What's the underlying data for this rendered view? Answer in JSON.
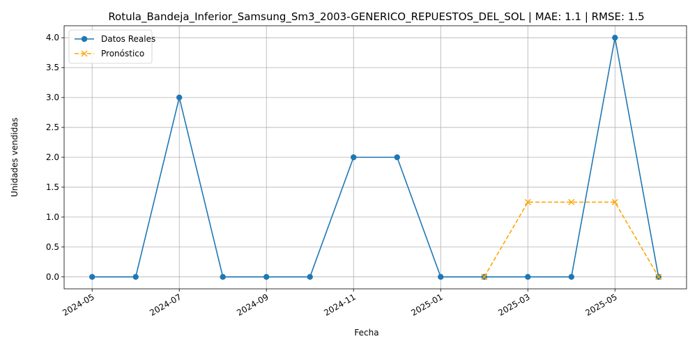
{
  "chart_data": {
    "type": "line",
    "title": "Rotula_Bandeja_Inferior_Samsung_Sm3_2003-GENERICO_REPUESTOS_DEL_SOL | MAE: 1.1 | RMSE: 1.5",
    "xlabel": "Fecha",
    "ylabel": "Unidades vendidas",
    "ylim": [
      -0.2,
      4.2
    ],
    "grid": true,
    "legend_position": "top-left",
    "x_months": [
      "2024-05",
      "2024-06",
      "2024-07",
      "2024-08",
      "2024-09",
      "2024-10",
      "2024-11",
      "2024-12",
      "2025-01",
      "2025-02",
      "2025-03",
      "2025-04",
      "2025-05",
      "2025-06"
    ],
    "x_ticks": [
      "2024-05",
      "2024-07",
      "2024-09",
      "2024-11",
      "2025-01",
      "2025-03",
      "2025-05"
    ],
    "y_ticks": [
      0.0,
      0.5,
      1.0,
      1.5,
      2.0,
      2.5,
      3.0,
      3.5,
      4.0
    ],
    "series": [
      {
        "name": "Datos Reales",
        "color": "#1f77b4",
        "marker": "circle",
        "linestyle": "solid",
        "x": [
          "2024-05",
          "2024-06",
          "2024-07",
          "2024-08",
          "2024-09",
          "2024-10",
          "2024-11",
          "2024-12",
          "2025-01",
          "2025-02",
          "2025-03",
          "2025-04",
          "2025-05",
          "2025-06"
        ],
        "values": [
          0,
          0,
          3,
          0,
          0,
          0,
          2,
          2,
          0,
          0,
          0,
          0,
          4,
          0
        ]
      },
      {
        "name": "Pronóstico",
        "color": "#ffa500",
        "marker": "x",
        "linestyle": "dashed",
        "x": [
          "2025-02",
          "2025-03",
          "2025-04",
          "2025-05",
          "2025-06"
        ],
        "values": [
          0,
          1.25,
          1.25,
          1.25,
          0
        ]
      }
    ]
  }
}
